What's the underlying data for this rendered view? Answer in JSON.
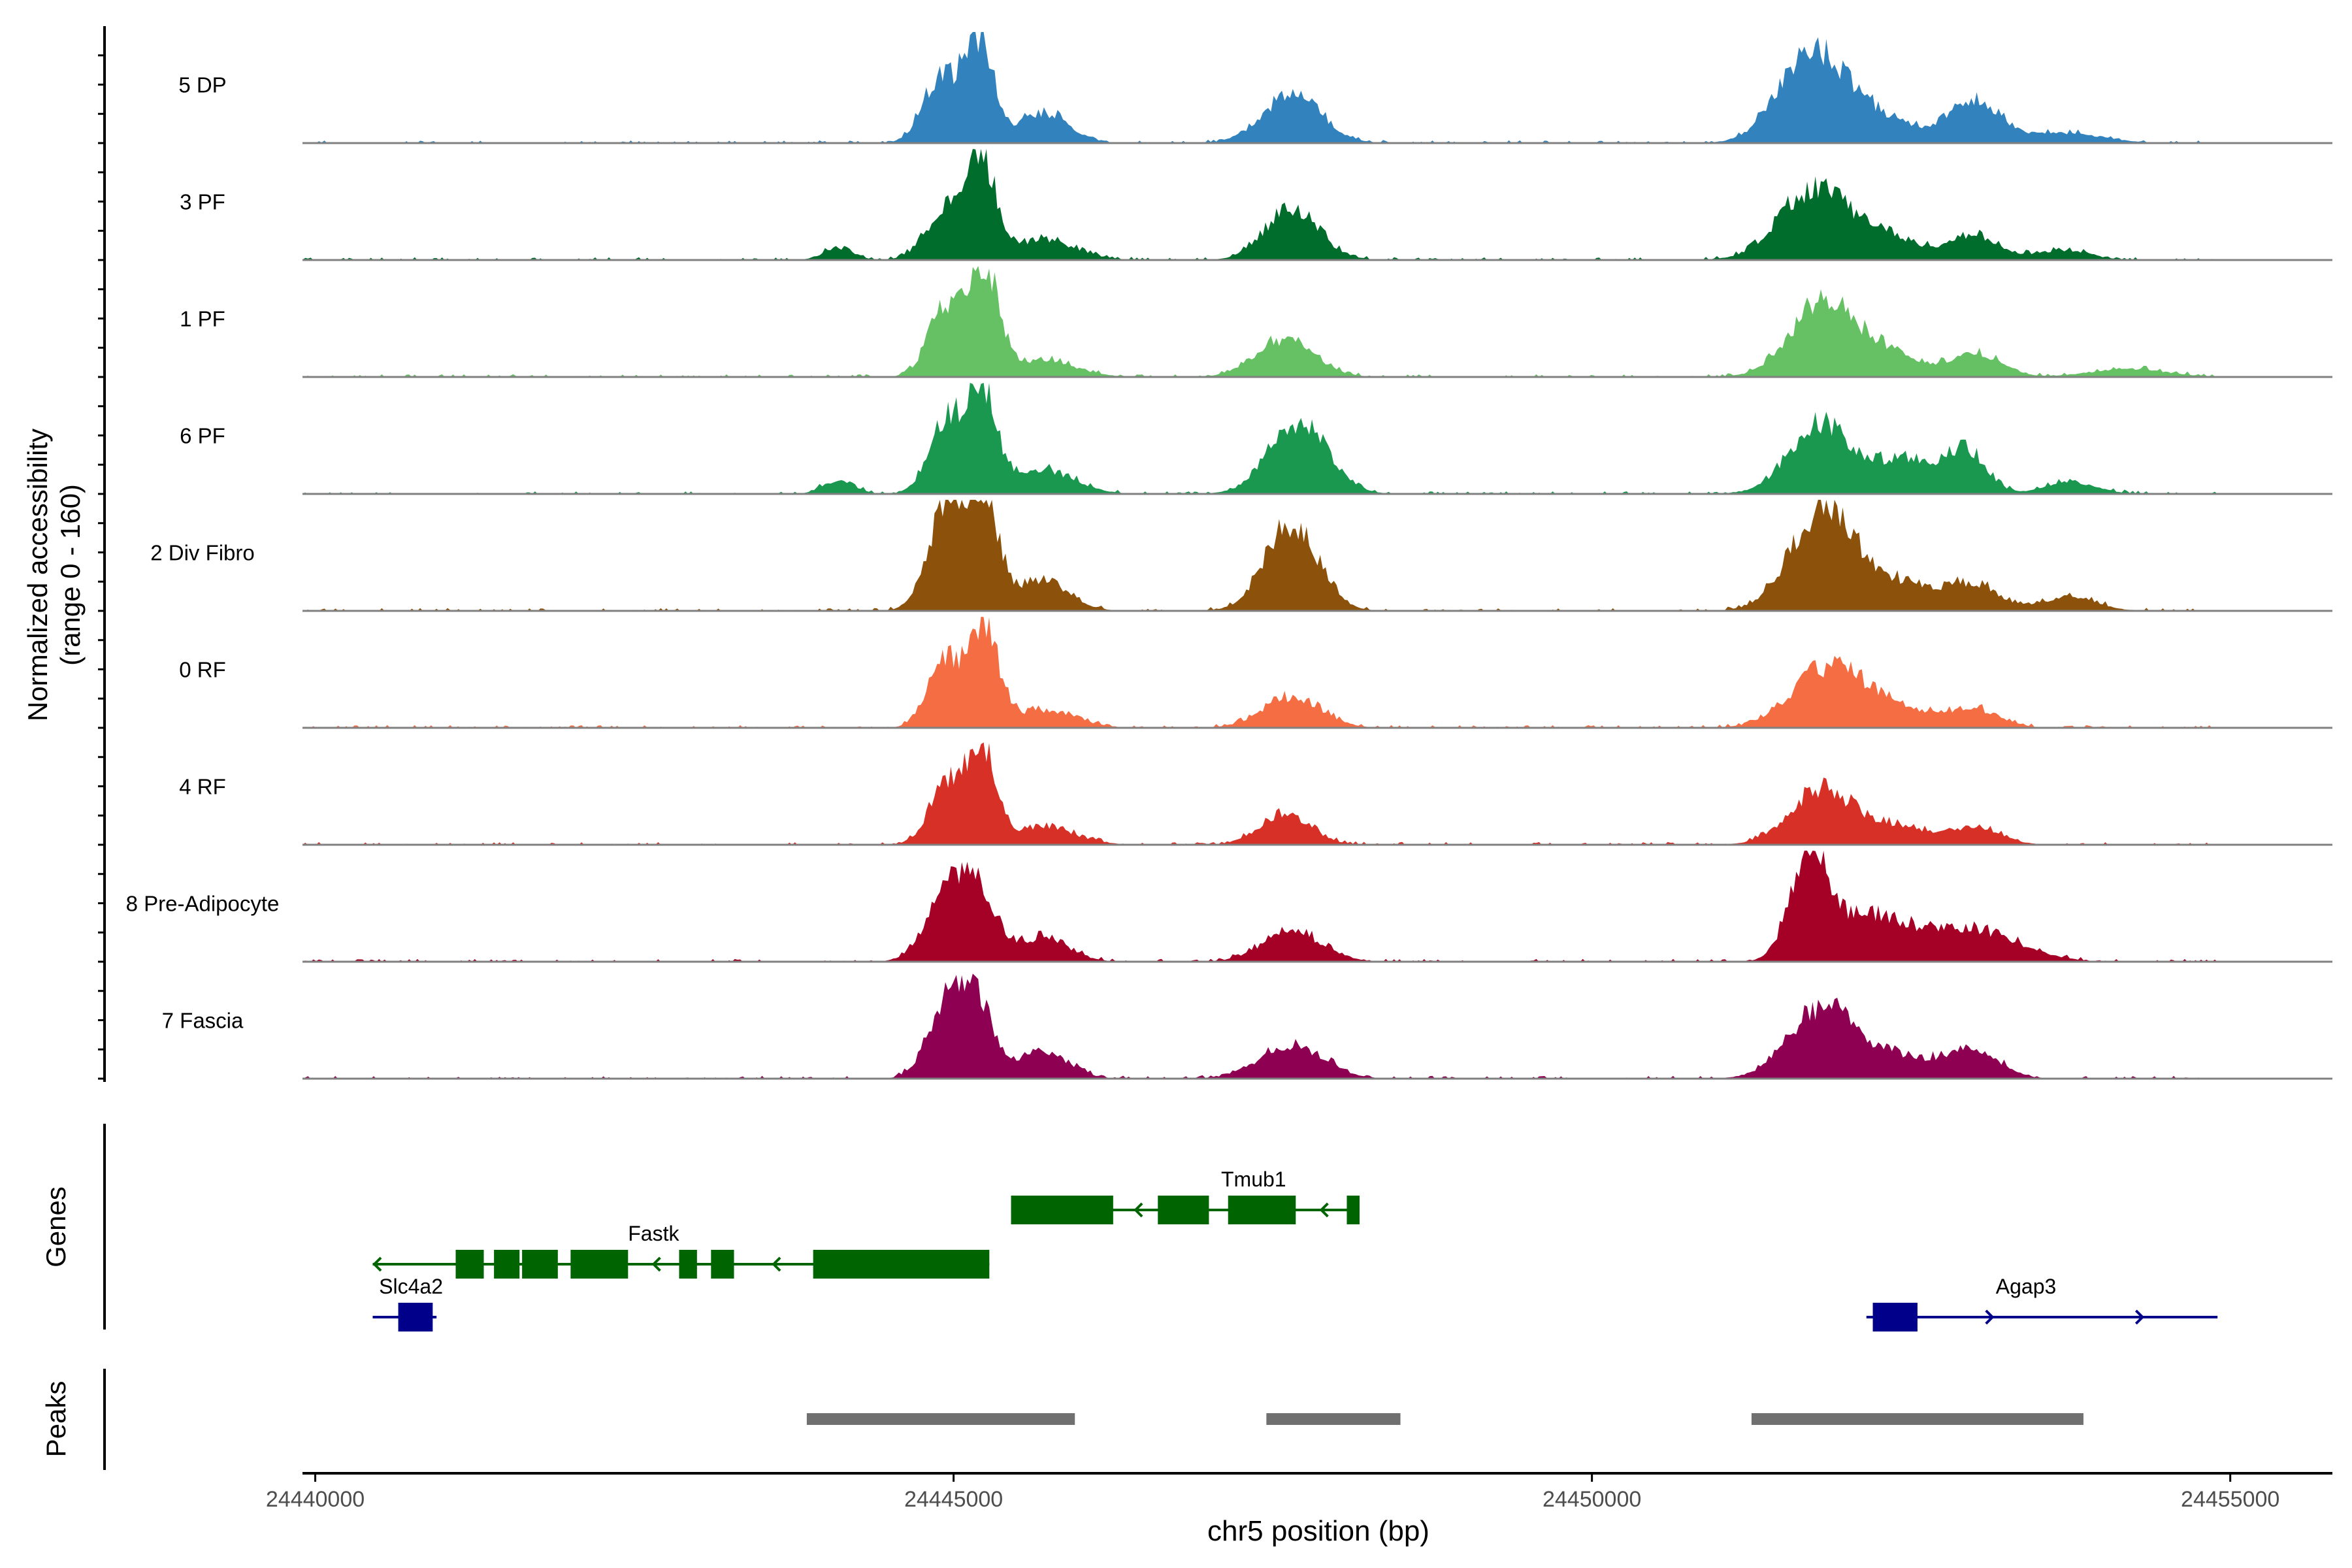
{
  "chart_data": {
    "type": "area",
    "subtype": "genome-coverage-tracks",
    "chromosome": "chr5",
    "xlabel": "chr5 position (bp)",
    "xlim": [
      24439900,
      24455800
    ],
    "x_ticks": [
      24440000,
      24445000,
      24450000,
      24455000
    ],
    "x_tick_labels": [
      "24440000",
      "24445000",
      "24450000",
      "24455000"
    ],
    "ylabel_line1": "Normalized accessibility",
    "ylabel_line2": "(range 0 - 160)",
    "ylim": [
      0,
      160
    ],
    "series": [
      {
        "name": "5 DP",
        "color": "#3182BD",
        "peaks": [
          [
            24444900,
            95,
            140
          ],
          [
            24445200,
            145,
            110
          ],
          [
            24445700,
            45,
            200
          ],
          [
            24447650,
            70,
            230
          ],
          [
            24451700,
            110,
            250
          ],
          [
            24452100,
            45,
            350
          ],
          [
            24453000,
            60,
            200
          ],
          [
            24453700,
            15,
            300
          ]
        ]
      },
      {
        "name": "3 PF",
        "color": "#006D2C",
        "peaks": [
          [
            24444100,
            18,
            120
          ],
          [
            24444950,
            75,
            160
          ],
          [
            24445220,
            135,
            110
          ],
          [
            24445700,
            30,
            250
          ],
          [
            24447650,
            75,
            210
          ],
          [
            24451700,
            90,
            260
          ],
          [
            24452200,
            40,
            300
          ],
          [
            24453000,
            35,
            200
          ],
          [
            24453700,
            15,
            200
          ]
        ]
      },
      {
        "name": "1 PF",
        "color": "#66C164",
        "peaks": [
          [
            24444950,
            105,
            140
          ],
          [
            24445250,
            150,
            110
          ],
          [
            24445700,
            25,
            250
          ],
          [
            24447600,
            55,
            230
          ],
          [
            24451800,
            105,
            250
          ],
          [
            24452300,
            35,
            250
          ],
          [
            24453000,
            35,
            200
          ],
          [
            24454200,
            12,
            300
          ]
        ]
      },
      {
        "name": "6 PF",
        "color": "#1A9850",
        "peaks": [
          [
            24444100,
            20,
            120
          ],
          [
            24444950,
            105,
            140
          ],
          [
            24445230,
            140,
            110
          ],
          [
            24445700,
            35,
            250
          ],
          [
            24447700,
            100,
            230
          ],
          [
            24451800,
            100,
            250
          ],
          [
            24452500,
            50,
            250
          ],
          [
            24452950,
            55,
            150
          ],
          [
            24453750,
            18,
            200
          ]
        ]
      },
      {
        "name": "2 Div Fibro",
        "color": "#8C510A",
        "peaks": [
          [
            24444950,
            150,
            150
          ],
          [
            24445230,
            155,
            120
          ],
          [
            24445700,
            45,
            200
          ],
          [
            24447650,
            125,
            210
          ],
          [
            24451800,
            140,
            250
          ],
          [
            24452400,
            40,
            300
          ],
          [
            24453000,
            35,
            200
          ],
          [
            24453750,
            22,
            200
          ]
        ]
      },
      {
        "name": "0 RF",
        "color": "#F46D43",
        "peaks": [
          [
            24444950,
            100,
            140
          ],
          [
            24445250,
            130,
            110
          ],
          [
            24445700,
            25,
            250
          ],
          [
            24447650,
            45,
            230
          ],
          [
            24451850,
            85,
            280
          ],
          [
            24452400,
            25,
            300
          ],
          [
            24453000,
            25,
            200
          ]
        ]
      },
      {
        "name": "4 RF",
        "color": "#D73027",
        "peaks": [
          [
            24444950,
            85,
            140
          ],
          [
            24445220,
            130,
            110
          ],
          [
            24445700,
            25,
            250
          ],
          [
            24447600,
            45,
            200
          ],
          [
            24451800,
            80,
            250
          ],
          [
            24452400,
            25,
            250
          ],
          [
            24453000,
            25,
            200
          ]
        ]
      },
      {
        "name": "8 Pre-Adipocyte",
        "color": "#A50026",
        "peaks": [
          [
            24444950,
            95,
            170
          ],
          [
            24445200,
            85,
            140
          ],
          [
            24445700,
            35,
            200
          ],
          [
            24447650,
            45,
            230
          ],
          [
            24451700,
            145,
            150
          ],
          [
            24452200,
            65,
            300
          ],
          [
            24453000,
            45,
            350
          ]
        ]
      },
      {
        "name": "7 Fascia",
        "color": "#8E0152",
        "peaks": [
          [
            24444950,
            110,
            150
          ],
          [
            24445200,
            90,
            130
          ],
          [
            24445700,
            40,
            200
          ],
          [
            24447650,
            50,
            250
          ],
          [
            24451800,
            100,
            260
          ],
          [
            24452400,
            30,
            300
          ],
          [
            24453000,
            40,
            200
          ]
        ]
      }
    ],
    "genes_track_label": "Genes",
    "genes": [
      {
        "name": "Slc4a2",
        "strand": "+",
        "color": "#00008B",
        "start": 24440450,
        "end": 24440950,
        "exons": [
          [
            24440650,
            24440920
          ]
        ]
      },
      {
        "name": "Fastk",
        "strand": "-",
        "color": "#006400",
        "start": 24440450,
        "end": 24445280,
        "exons": [
          [
            24441100,
            24441320
          ],
          [
            24441400,
            24441600
          ],
          [
            24441620,
            24441900
          ],
          [
            24442000,
            24442450
          ],
          [
            24442850,
            24442990
          ],
          [
            24443100,
            24443280
          ],
          [
            24443900,
            24445280
          ]
        ]
      },
      {
        "name": "Tmub1",
        "strand": "-",
        "color": "#006400",
        "start": 24445450,
        "end": 24448180,
        "exons": [
          [
            24445450,
            24446250
          ],
          [
            24446600,
            24447000
          ],
          [
            24447150,
            24447680
          ],
          [
            24448080,
            24448180
          ]
        ]
      },
      {
        "name": "Agap3",
        "strand": "+",
        "color": "#00008B",
        "start": 24452150,
        "end": 24454900,
        "exons": [
          [
            24452200,
            24452550
          ]
        ]
      }
    ],
    "peaks_track_label": "Peaks",
    "peak_regions": [
      [
        24443850,
        24445950
      ],
      [
        24447450,
        24448500
      ],
      [
        24451250,
        24453850
      ]
    ]
  }
}
